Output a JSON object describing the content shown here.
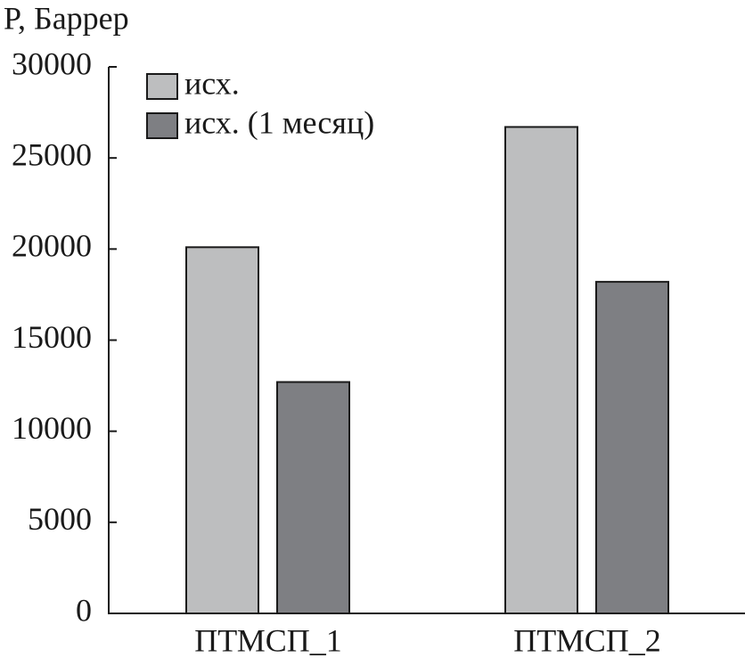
{
  "chart_data": {
    "type": "bar",
    "y_label": "P, Баррер",
    "categories": [
      "ПТМСП_1",
      "ПТМСП_2"
    ],
    "series": [
      {
        "name": "исх.",
        "color": "#bdbebf",
        "values": [
          20100,
          26700
        ]
      },
      {
        "name": "исх. (1 месяц)",
        "color": "#7e7f83",
        "values": [
          12700,
          18200
        ]
      }
    ],
    "ylim": [
      0,
      30000
    ],
    "yticks": [
      0,
      5000,
      10000,
      15000,
      20000,
      25000,
      30000
    ],
    "legend": "top-left"
  }
}
